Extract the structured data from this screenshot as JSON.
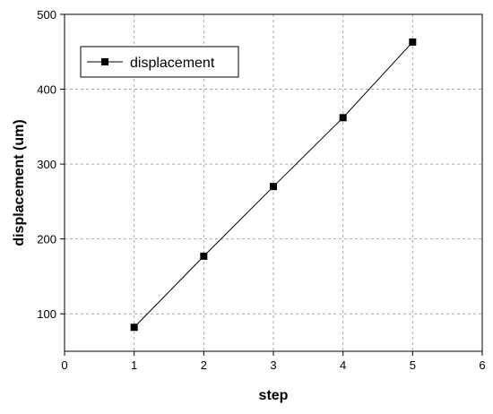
{
  "chart_data": {
    "type": "line",
    "title": "",
    "xlabel": "step",
    "ylabel": "displacement (um)",
    "xlim": [
      0,
      6
    ],
    "ylim": [
      50,
      500
    ],
    "x_ticks": [
      "0",
      "1",
      "2",
      "3",
      "4",
      "5",
      "6"
    ],
    "y_ticks": [
      "100",
      "200",
      "300",
      "400",
      "500"
    ],
    "grid": true,
    "legend_position": "top-left",
    "series": [
      {
        "name": "displacement",
        "color": "#000000",
        "marker": "square",
        "x": [
          1,
          2,
          3,
          4,
          5
        ],
        "y": [
          82,
          177,
          270,
          362,
          463
        ]
      }
    ]
  }
}
